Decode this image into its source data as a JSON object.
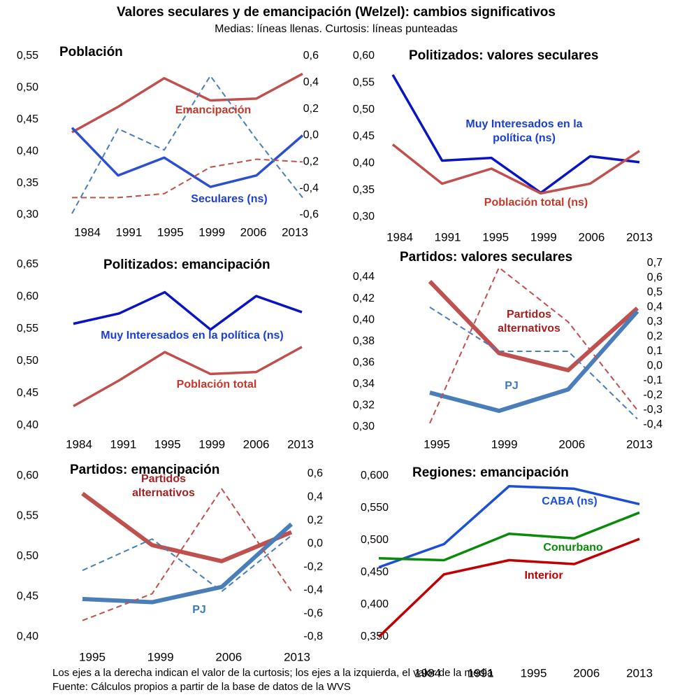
{
  "title": "Valores seculares y de emancipación (Welzel): cambios significativos",
  "subtitle": "Medias: líneas llenas. Curtosis: líneas punteadas",
  "chart_data": [
    {
      "type": "line",
      "title": "Población",
      "categories": [
        "1984",
        "1991",
        "1995",
        "1999",
        "2006",
        "2013"
      ],
      "ylim": [
        0.3,
        0.55
      ],
      "yticks": [
        {
          "value": 0.3,
          "label": "0,30"
        },
        {
          "value": 0.35,
          "label": "0,35"
        },
        {
          "value": 0.4,
          "label": "0,40"
        },
        {
          "value": 0.45,
          "label": "0,45"
        },
        {
          "value": 0.5,
          "label": "0,50"
        },
        {
          "value": 0.55,
          "label": "0,55"
        }
      ],
      "y2lim": [
        -0.6,
        0.6
      ],
      "y2ticks": [
        {
          "value": -0.6,
          "label": "-0,6"
        },
        {
          "value": -0.4,
          "label": "-0,4"
        },
        {
          "value": -0.2,
          "label": "-0,2"
        },
        {
          "value": 0,
          "label": "0,0"
        },
        {
          "value": 0.2,
          "label": "0,2"
        },
        {
          "value": 0.4,
          "label": "0,4"
        },
        {
          "value": 0.6,
          "label": "0,6"
        }
      ],
      "series": [
        {
          "name": "Emancipación",
          "color": "#c0504d",
          "label_color": "#c0392b",
          "values": [
            0.43,
            0.47,
            0.515,
            0.48,
            0.483,
            0.522
          ]
        },
        {
          "name": "Seculares (ns)",
          "color": "#2a4fd0",
          "label_color": "#1f3fd0",
          "values": [
            0.437,
            0.362,
            0.39,
            0.344,
            0.362,
            0.425
          ]
        },
        {
          "color": "#c0504d",
          "axis": "y2",
          "dash": true,
          "values": [
            -0.47,
            -0.47,
            -0.44,
            -0.24,
            -0.18,
            -0.2
          ]
        },
        {
          "color": "#4a7ebb",
          "axis": "y2",
          "dash": true,
          "values": [
            -0.59,
            0.05,
            -0.11,
            0.45,
            -0.03,
            -0.47
          ]
        }
      ]
    },
    {
      "type": "line",
      "title": "Politizados: valores seculares",
      "categories": [
        "1984",
        "1991",
        "1995",
        "1999",
        "2006",
        "2013"
      ],
      "ylim": [
        0.3,
        0.6
      ],
      "yticks": [
        {
          "value": 0.3,
          "label": "0,30"
        },
        {
          "value": 0.35,
          "label": "0,35"
        },
        {
          "value": 0.4,
          "label": "0,40"
        },
        {
          "value": 0.45,
          "label": "0,45"
        },
        {
          "value": 0.5,
          "label": "0,50"
        },
        {
          "value": 0.55,
          "label": "0,55"
        },
        {
          "value": 0.6,
          "label": "0,60"
        }
      ],
      "series": [
        {
          "name": "Muy Interesados en la política (ns)",
          "color": "#0a14c0",
          "label_color": "#1a3fd0",
          "values": [
            0.565,
            0.405,
            0.41,
            0.345,
            0.413,
            0.402
          ]
        },
        {
          "name": "Población total (ns)",
          "color": "#c0504d",
          "label_color": "#c0392b",
          "values": [
            0.435,
            0.362,
            0.39,
            0.344,
            0.362,
            0.423
          ]
        }
      ]
    },
    {
      "type": "line",
      "title": "Politizados: emancipación",
      "categories": [
        "1984",
        "1991",
        "1995",
        "1999",
        "2006",
        "2013"
      ],
      "ylim": [
        0.4,
        0.65
      ],
      "yticks": [
        {
          "value": 0.4,
          "label": "0,40"
        },
        {
          "value": 0.45,
          "label": "0,45"
        },
        {
          "value": 0.5,
          "label": "0,50"
        },
        {
          "value": 0.55,
          "label": "0,55"
        },
        {
          "value": 0.6,
          "label": "0,60"
        },
        {
          "value": 0.65,
          "label": "0,65"
        }
      ],
      "series": [
        {
          "name": "Muy Interesados en la política (ns)",
          "color": "#0a14c0",
          "label_color": "#1a3fd0",
          "values": [
            0.558,
            0.574,
            0.607,
            0.549,
            0.601,
            0.576
          ]
        },
        {
          "name": "Población total",
          "color": "#c0504d",
          "label_color": "#c0392b",
          "values": [
            0.43,
            0.47,
            0.514,
            0.48,
            0.483,
            0.522
          ]
        }
      ]
    },
    {
      "type": "line",
      "title": "Partidos: valores seculares",
      "categories": [
        "1995",
        "1999",
        "2006",
        "2013"
      ],
      "ylim": [
        0.3,
        0.44
      ],
      "yticks": [
        {
          "value": 0.3,
          "label": "0,30"
        },
        {
          "value": 0.32,
          "label": "0,32"
        },
        {
          "value": 0.34,
          "label": "0,34"
        },
        {
          "value": 0.36,
          "label": "0,36"
        },
        {
          "value": 0.38,
          "label": "0,38"
        },
        {
          "value": 0.4,
          "label": "0,40"
        },
        {
          "value": 0.42,
          "label": "0,42"
        },
        {
          "value": 0.44,
          "label": "0,44"
        }
      ],
      "y2lim": [
        -0.4,
        0.7
      ],
      "y2ticks": [
        {
          "value": -0.4,
          "label": "-0,4"
        },
        {
          "value": -0.3,
          "label": "-0,3"
        },
        {
          "value": -0.2,
          "label": "-0,2"
        },
        {
          "value": -0.1,
          "label": "-0,1"
        },
        {
          "value": 0,
          "label": "0,0"
        },
        {
          "value": 0.1,
          "label": "0,1"
        },
        {
          "value": 0.2,
          "label": "0,2"
        },
        {
          "value": 0.3,
          "label": "0,3"
        },
        {
          "value": 0.4,
          "label": "0,4"
        },
        {
          "value": 0.5,
          "label": "0,5"
        },
        {
          "value": 0.6,
          "label": "0,6"
        },
        {
          "value": 0.7,
          "label": "0,7"
        }
      ],
      "series": [
        {
          "name": "Partidos alternativos",
          "color": "#c0504d",
          "label_color": "#a52020",
          "line_width": 6,
          "values": [
            0.436,
            0.369,
            0.353,
            0.411
          ]
        },
        {
          "name": "PJ",
          "color": "#4a7ebb",
          "label_color": "#3a78c8",
          "line_width": 6,
          "values": [
            0.332,
            0.315,
            0.335,
            0.408
          ]
        },
        {
          "color": "#c0504d",
          "axis": "y2",
          "dash": true,
          "values": [
            -0.39,
            0.67,
            0.3,
            -0.3
          ]
        },
        {
          "color": "#4a7ebb",
          "axis": "y2",
          "dash": true,
          "values": [
            0.4,
            0.1,
            0.1,
            -0.36
          ]
        }
      ]
    },
    {
      "type": "line",
      "title": "Partidos: emancipación",
      "categories": [
        "1995",
        "1999",
        "2006",
        "2013"
      ],
      "ylim": [
        0.4,
        0.6
      ],
      "yticks": [
        {
          "value": 0.4,
          "label": "0,40"
        },
        {
          "value": 0.45,
          "label": "0,45"
        },
        {
          "value": 0.5,
          "label": "0,50"
        },
        {
          "value": 0.55,
          "label": "0,55"
        },
        {
          "value": 0.6,
          "label": "0,60"
        }
      ],
      "y2lim": [
        -0.8,
        0.6
      ],
      "y2ticks": [
        {
          "value": -0.8,
          "label": "-0,8"
        },
        {
          "value": -0.6,
          "label": "-0,6"
        },
        {
          "value": -0.4,
          "label": "-0,4"
        },
        {
          "value": -0.2,
          "label": "-0,2"
        },
        {
          "value": 0,
          "label": "0,0"
        },
        {
          "value": 0.2,
          "label": "0,2"
        },
        {
          "value": 0.4,
          "label": "0,4"
        },
        {
          "value": 0.6,
          "label": "0,6"
        }
      ],
      "series": [
        {
          "name": "Partidos alternativos",
          "color": "#c0504d",
          "label_color": "#a52020",
          "line_width": 6,
          "values": [
            0.578,
            0.514,
            0.494,
            0.53
          ]
        },
        {
          "name": "PJ",
          "color": "#4a7ebb",
          "label_color": "#3a78c8",
          "line_width": 6,
          "values": [
            0.447,
            0.443,
            0.462,
            0.54
          ]
        },
        {
          "color": "#c0504d",
          "axis": "y2",
          "dash": true,
          "values": [
            -0.66,
            -0.43,
            0.47,
            -0.41
          ]
        },
        {
          "color": "#4a7ebb",
          "axis": "y2",
          "dash": true,
          "values": [
            -0.23,
            0.04,
            -0.41,
            0.07
          ]
        }
      ]
    },
    {
      "type": "line",
      "title": "Regiones: emancipación",
      "categories": [
        "1984",
        "1991",
        "1995",
        "2006",
        "2013"
      ],
      "ylim": [
        0.35,
        0.6
      ],
      "yticks": [
        {
          "value": 0.35,
          "label": "0,350"
        },
        {
          "value": 0.4,
          "label": "0,400"
        },
        {
          "value": 0.45,
          "label": "0,450"
        },
        {
          "value": 0.5,
          "label": "0,500"
        },
        {
          "value": 0.55,
          "label": "0,550"
        },
        {
          "value": 0.6,
          "label": "0,600"
        }
      ],
      "series": [
        {
          "name": "CABA (ns)",
          "color": "#1a4fd6",
          "values": [
            0.458,
            0.494,
            0.584,
            0.58,
            0.556
          ]
        },
        {
          "name": "Conurbano",
          "color": "#0a8a0a",
          "values": [
            0.472,
            0.469,
            0.51,
            0.503,
            0.543
          ]
        },
        {
          "name": "Interior",
          "color": "#c00000",
          "values": [
            0.35,
            0.447,
            0.469,
            0.463,
            0.502
          ]
        }
      ]
    }
  ],
  "footer": [
    "Los ejes a la derecha indican el valor de la curtosis; los ejes a la izquierda, el valor de la media",
    "Fuente: Cálculos propios a partir de la base de datos de la WVS"
  ]
}
